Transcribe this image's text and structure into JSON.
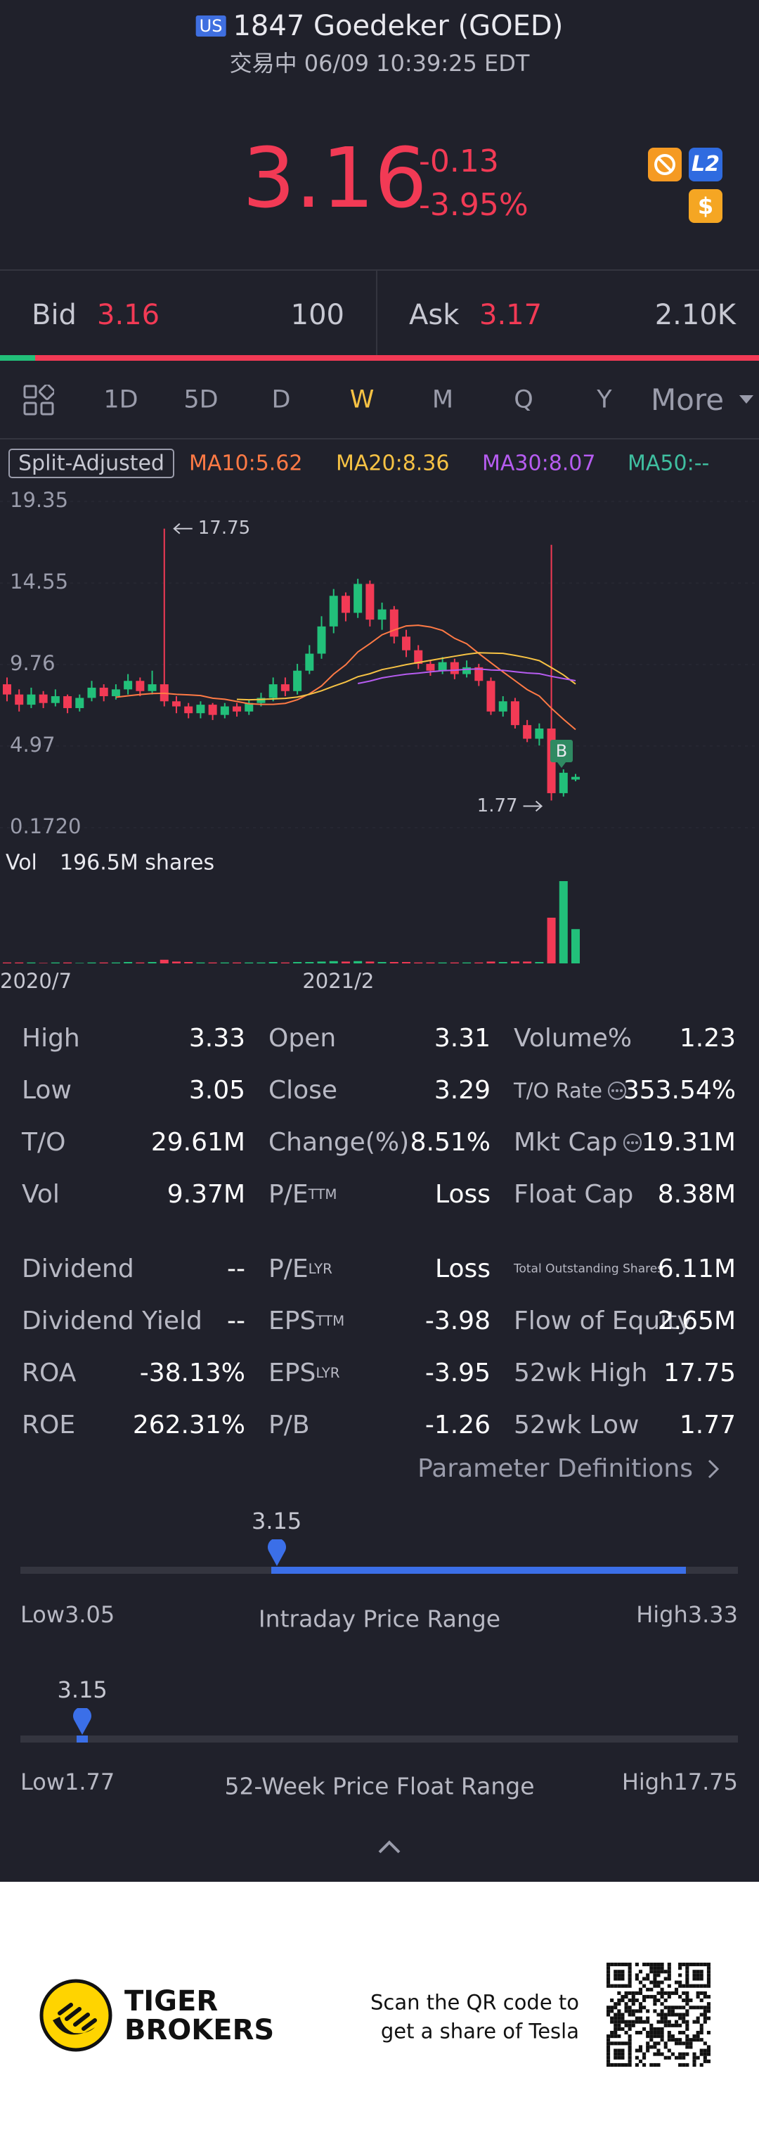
{
  "header": {
    "market": "US",
    "title": "1847 Goedeker (GOED)",
    "status": "交易中 06/09 10:39:25 EDT",
    "badge_l2": "L2",
    "badge_cash": "$"
  },
  "quote": {
    "price": "3.16",
    "change": "-0.13",
    "change_pct": "-3.95%"
  },
  "bid": {
    "label": "Bid",
    "price": "3.16",
    "size": "100"
  },
  "ask": {
    "label": "Ask",
    "price": "3.17",
    "size": "2.10K"
  },
  "tabs": {
    "items": [
      "1D",
      "5D",
      "D",
      "W",
      "M",
      "Q",
      "Y",
      "More"
    ],
    "active": 3
  },
  "chart_data": {
    "type": "candlestick",
    "mode_label": "Split-Adjusted",
    "moving_averages": [
      {
        "name": "MA10:5.62",
        "color": "#ff7a45"
      },
      {
        "name": "MA20:8.36",
        "color": "#f6c244"
      },
      {
        "name": "MA30:8.07",
        "color": "#b65cf0"
      },
      {
        "name": "MA50:--",
        "color": "#3fbfa0"
      }
    ],
    "up_color": "#22c07a",
    "down_color": "#f23a55",
    "ylim": [
      0.172,
      19.35
    ],
    "yticks": [
      19.35,
      14.55,
      9.76,
      4.97,
      {
        "value": 0.172,
        "label": "0.1720"
      }
    ],
    "categories": [
      "2020/7",
      null,
      null,
      null,
      null,
      null,
      null,
      null,
      null,
      null,
      null,
      null,
      null,
      null,
      null,
      null,
      null,
      null,
      null,
      null,
      null,
      null,
      null,
      null,
      null,
      "2021/2",
      null,
      null,
      null,
      null,
      null,
      null,
      null,
      null,
      null,
      null,
      null,
      null,
      null,
      null,
      null,
      null,
      null,
      null,
      null,
      null,
      null,
      null
    ],
    "candles": [
      {
        "o": 8.6,
        "c": 8.0,
        "h": 9.0,
        "l": 7.6
      },
      {
        "o": 8.0,
        "c": 7.4,
        "h": 8.3,
        "l": 7.0
      },
      {
        "o": 7.4,
        "c": 8.0,
        "h": 8.4,
        "l": 7.2
      },
      {
        "o": 8.0,
        "c": 7.5,
        "h": 8.2,
        "l": 7.2
      },
      {
        "o": 7.5,
        "c": 7.9,
        "h": 8.3,
        "l": 7.3
      },
      {
        "o": 7.9,
        "c": 7.2,
        "h": 8.0,
        "l": 6.9
      },
      {
        "o": 7.2,
        "c": 7.8,
        "h": 8.0,
        "l": 7.0
      },
      {
        "o": 7.8,
        "c": 8.4,
        "h": 8.8,
        "l": 7.6
      },
      {
        "o": 8.4,
        "c": 7.9,
        "h": 8.6,
        "l": 7.6
      },
      {
        "o": 7.9,
        "c": 8.3,
        "h": 8.6,
        "l": 7.7
      },
      {
        "o": 8.3,
        "c": 8.8,
        "h": 9.2,
        "l": 8.0
      },
      {
        "o": 8.8,
        "c": 8.2,
        "h": 9.0,
        "l": 7.9
      },
      {
        "o": 8.2,
        "c": 8.6,
        "h": 9.4,
        "l": 8.0
      },
      {
        "o": 8.6,
        "c": 7.6,
        "h": 17.75,
        "l": 7.3
      },
      {
        "o": 7.6,
        "c": 7.3,
        "h": 7.9,
        "l": 6.9
      },
      {
        "o": 7.3,
        "c": 6.9,
        "h": 7.5,
        "l": 6.6
      },
      {
        "o": 6.9,
        "c": 7.4,
        "h": 7.6,
        "l": 6.6
      },
      {
        "o": 7.4,
        "c": 6.8,
        "h": 7.5,
        "l": 6.5
      },
      {
        "o": 6.8,
        "c": 7.3,
        "h": 7.5,
        "l": 6.6
      },
      {
        "o": 7.3,
        "c": 7.0,
        "h": 7.5,
        "l": 6.7
      },
      {
        "o": 7.0,
        "c": 7.5,
        "h": 7.7,
        "l": 6.8
      },
      {
        "o": 7.5,
        "c": 7.8,
        "h": 8.1,
        "l": 7.3
      },
      {
        "o": 7.8,
        "c": 8.6,
        "h": 9.0,
        "l": 7.6
      },
      {
        "o": 8.6,
        "c": 8.2,
        "h": 9.0,
        "l": 7.9
      },
      {
        "o": 8.2,
        "c": 9.4,
        "h": 9.8,
        "l": 8.0
      },
      {
        "o": 9.4,
        "c": 10.4,
        "h": 10.9,
        "l": 9.2
      },
      {
        "o": 10.4,
        "c": 12.0,
        "h": 12.6,
        "l": 10.1
      },
      {
        "o": 12.0,
        "c": 13.8,
        "h": 14.2,
        "l": 11.6
      },
      {
        "o": 13.8,
        "c": 12.8,
        "h": 14.0,
        "l": 12.3
      },
      {
        "o": 12.8,
        "c": 14.5,
        "h": 14.8,
        "l": 12.5
      },
      {
        "o": 14.5,
        "c": 12.4,
        "h": 14.7,
        "l": 12.0
      },
      {
        "o": 12.4,
        "c": 13.0,
        "h": 13.4,
        "l": 11.8
      },
      {
        "o": 13.0,
        "c": 11.4,
        "h": 13.2,
        "l": 11.0
      },
      {
        "o": 11.4,
        "c": 10.6,
        "h": 11.8,
        "l": 10.2
      },
      {
        "o": 10.6,
        "c": 9.8,
        "h": 10.9,
        "l": 9.5
      },
      {
        "o": 9.8,
        "c": 9.4,
        "h": 10.0,
        "l": 9.1
      },
      {
        "o": 9.4,
        "c": 9.9,
        "h": 10.2,
        "l": 9.2
      },
      {
        "o": 9.9,
        "c": 9.2,
        "h": 10.1,
        "l": 8.9
      },
      {
        "o": 9.2,
        "c": 9.6,
        "h": 10.0,
        "l": 9.0
      },
      {
        "o": 9.6,
        "c": 8.8,
        "h": 9.8,
        "l": 8.5
      },
      {
        "o": 8.8,
        "c": 7.0,
        "h": 9.0,
        "l": 6.8
      },
      {
        "o": 7.0,
        "c": 7.6,
        "h": 7.9,
        "l": 6.7
      },
      {
        "o": 7.6,
        "c": 6.2,
        "h": 7.8,
        "l": 6.0
      },
      {
        "o": 6.2,
        "c": 5.4,
        "h": 6.5,
        "l": 5.2
      },
      {
        "o": 5.4,
        "c": 6.0,
        "h": 6.3,
        "l": 5.0
      },
      {
        "o": 6.0,
        "c": 2.2,
        "h": 16.8,
        "l": 1.77
      },
      {
        "o": 2.2,
        "c": 3.4,
        "h": 3.6,
        "l": 2.0
      },
      {
        "o": 3.0,
        "c": 3.16,
        "h": 3.33,
        "l": 2.9
      }
    ],
    "volume": [
      2,
      2,
      2,
      1,
      2,
      2,
      1,
      2,
      2,
      2,
      3,
      2,
      3,
      8,
      4,
      3,
      2,
      2,
      2,
      2,
      2,
      2,
      3,
      2,
      3,
      3,
      4,
      5,
      4,
      5,
      4,
      3,
      3,
      3,
      2,
      2,
      2,
      2,
      2,
      2,
      4,
      3,
      4,
      4,
      3,
      100,
      180,
      75
    ],
    "volume_label": "Vol",
    "volume_value": "196.5M shares",
    "high_label": "17.75",
    "low_label": "1.77",
    "marker_label": "B"
  },
  "stats": [
    [
      [
        {
          "label": "High",
          "value": "3.33"
        },
        {
          "label": "Open",
          "value": "3.31"
        },
        {
          "label": "Volume%",
          "value": "1.23"
        }
      ],
      [
        {
          "label": "Low",
          "value": "3.05"
        },
        {
          "label": "Close",
          "value": "3.29"
        },
        {
          "label": "T/O Rate",
          "value": "353.54%"
        }
      ],
      [
        {
          "label": "T/O",
          "value": "29.61M"
        },
        {
          "label": "Change(%)",
          "value": "8.51%"
        },
        {
          "label": "Mkt Cap",
          "value": "19.31M"
        }
      ],
      [
        {
          "label": "Vol",
          "value": "9.37M"
        },
        {
          "label": "P/E",
          "sup": "TTM",
          "value": "Loss"
        },
        {
          "label": "Float Cap",
          "value": "8.38M"
        }
      ]
    ],
    [
      [
        {
          "label": "Dividend",
          "value": "--"
        },
        {
          "label": "P/E",
          "sup": "LYR",
          "value": "Loss"
        },
        {
          "label": "Total Outstanding Shares",
          "value": "6.11M"
        }
      ],
      [
        {
          "label": "Dividend Yield",
          "value": "--"
        },
        {
          "label": "EPS",
          "sup": "TTM",
          "value": "-3.98"
        },
        {
          "label": "Flow of Equity",
          "value": "2.65M"
        }
      ],
      [
        {
          "label": "ROA",
          "value": "-38.13%"
        },
        {
          "label": "EPS",
          "sup": "LYR",
          "value": "-3.95"
        },
        {
          "label": "52wk High",
          "value": "17.75"
        }
      ],
      [
        {
          "label": "ROE",
          "value": "262.31%"
        },
        {
          "label": "P/B",
          "value": "-1.26"
        },
        {
          "label": "52wk Low",
          "value": "1.77"
        }
      ]
    ]
  ],
  "parameter_link": "Parameter Definitions",
  "ranges": [
    {
      "title": "Intraday Price Range",
      "low_label": "Low",
      "low": 3.05,
      "high_label": "High",
      "high": 3.33,
      "current": 3.15
    },
    {
      "title": "52-Week Price Float Range",
      "low_label": "Low",
      "low": 1.77,
      "high_label": "High",
      "high": 17.75,
      "current": 3.15
    }
  ],
  "footer": {
    "brand_line1": "TIGER",
    "brand_line2": "BROKERS",
    "promo_line1": "Scan the QR code to",
    "promo_line2": "get a share of Tesla"
  }
}
